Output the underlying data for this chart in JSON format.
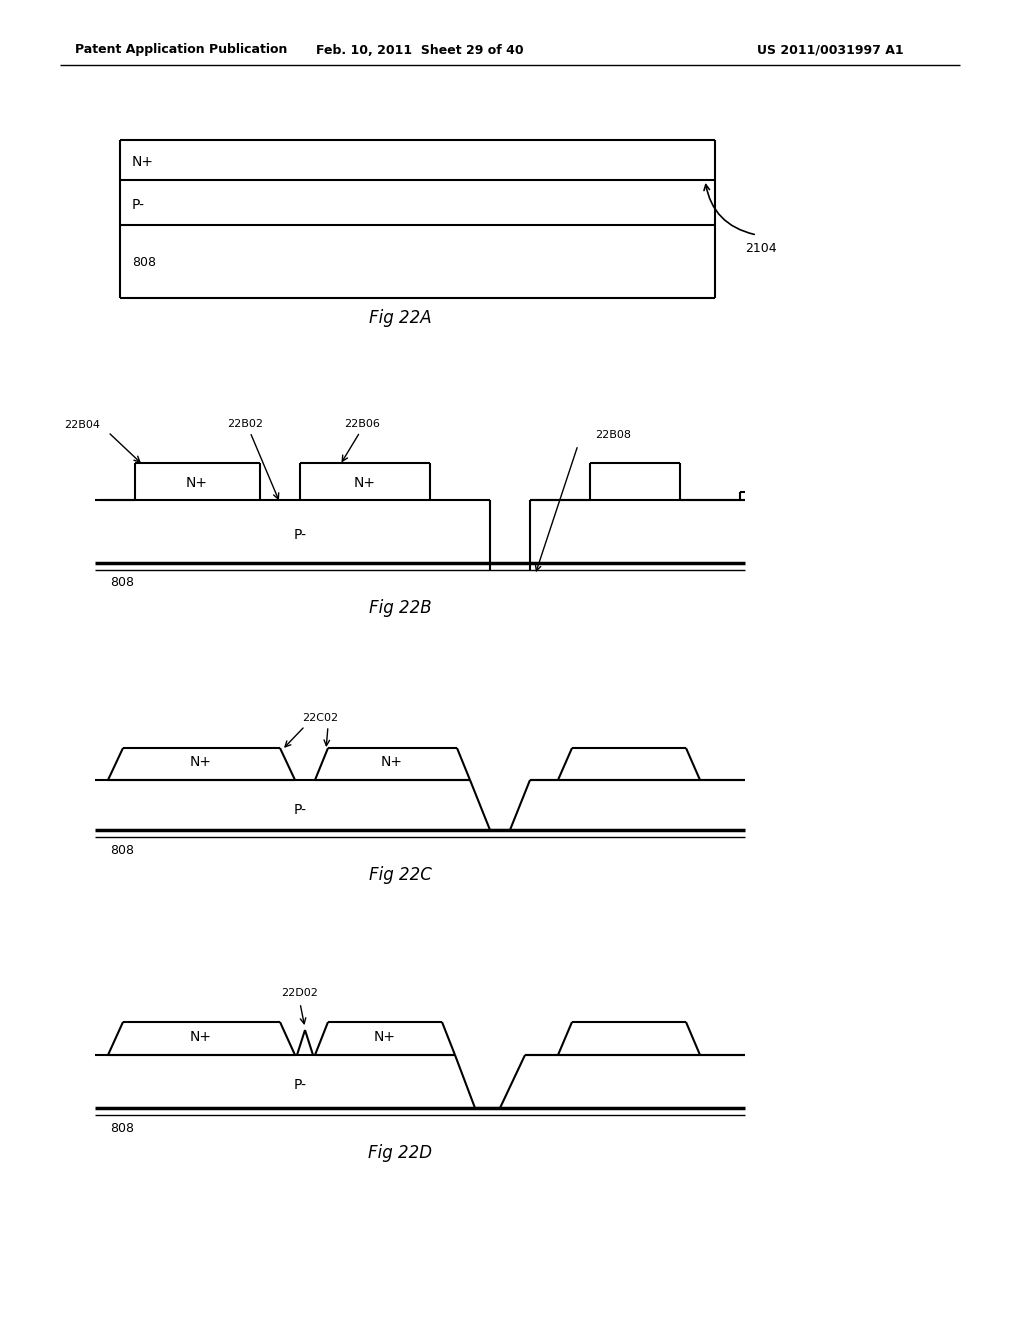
{
  "header_left": "Patent Application Publication",
  "header_mid": "Feb. 10, 2011  Sheet 29 of 40",
  "header_right": "US 2011/0031997 A1",
  "bg_color": "#ffffff",
  "fig22A": {
    "title": "Fig 22A",
    "label_808": "808",
    "label_2104": "2104",
    "label_Nplus": "N+",
    "label_Pminus": "P-"
  },
  "fig22B": {
    "title": "Fig 22B",
    "label_808": "808",
    "label_Pminus": "P-",
    "label_22B04": "22B04",
    "label_22B02": "22B02",
    "label_22B06": "22B06",
    "label_22B08": "22B08",
    "label_Nplus1": "N+",
    "label_Nplus2": "N+"
  },
  "fig22C": {
    "title": "Fig 22C",
    "label_808": "808",
    "label_Pminus": "P-",
    "label_22C02": "22C02",
    "label_Nplus1": "N+",
    "label_Nplus2": "N+"
  },
  "fig22D": {
    "title": "Fig 22D",
    "label_808": "808",
    "label_Pminus": "P-",
    "label_22D02": "22D02",
    "label_Nplus1": "N+",
    "label_Nplus2": "N+"
  }
}
